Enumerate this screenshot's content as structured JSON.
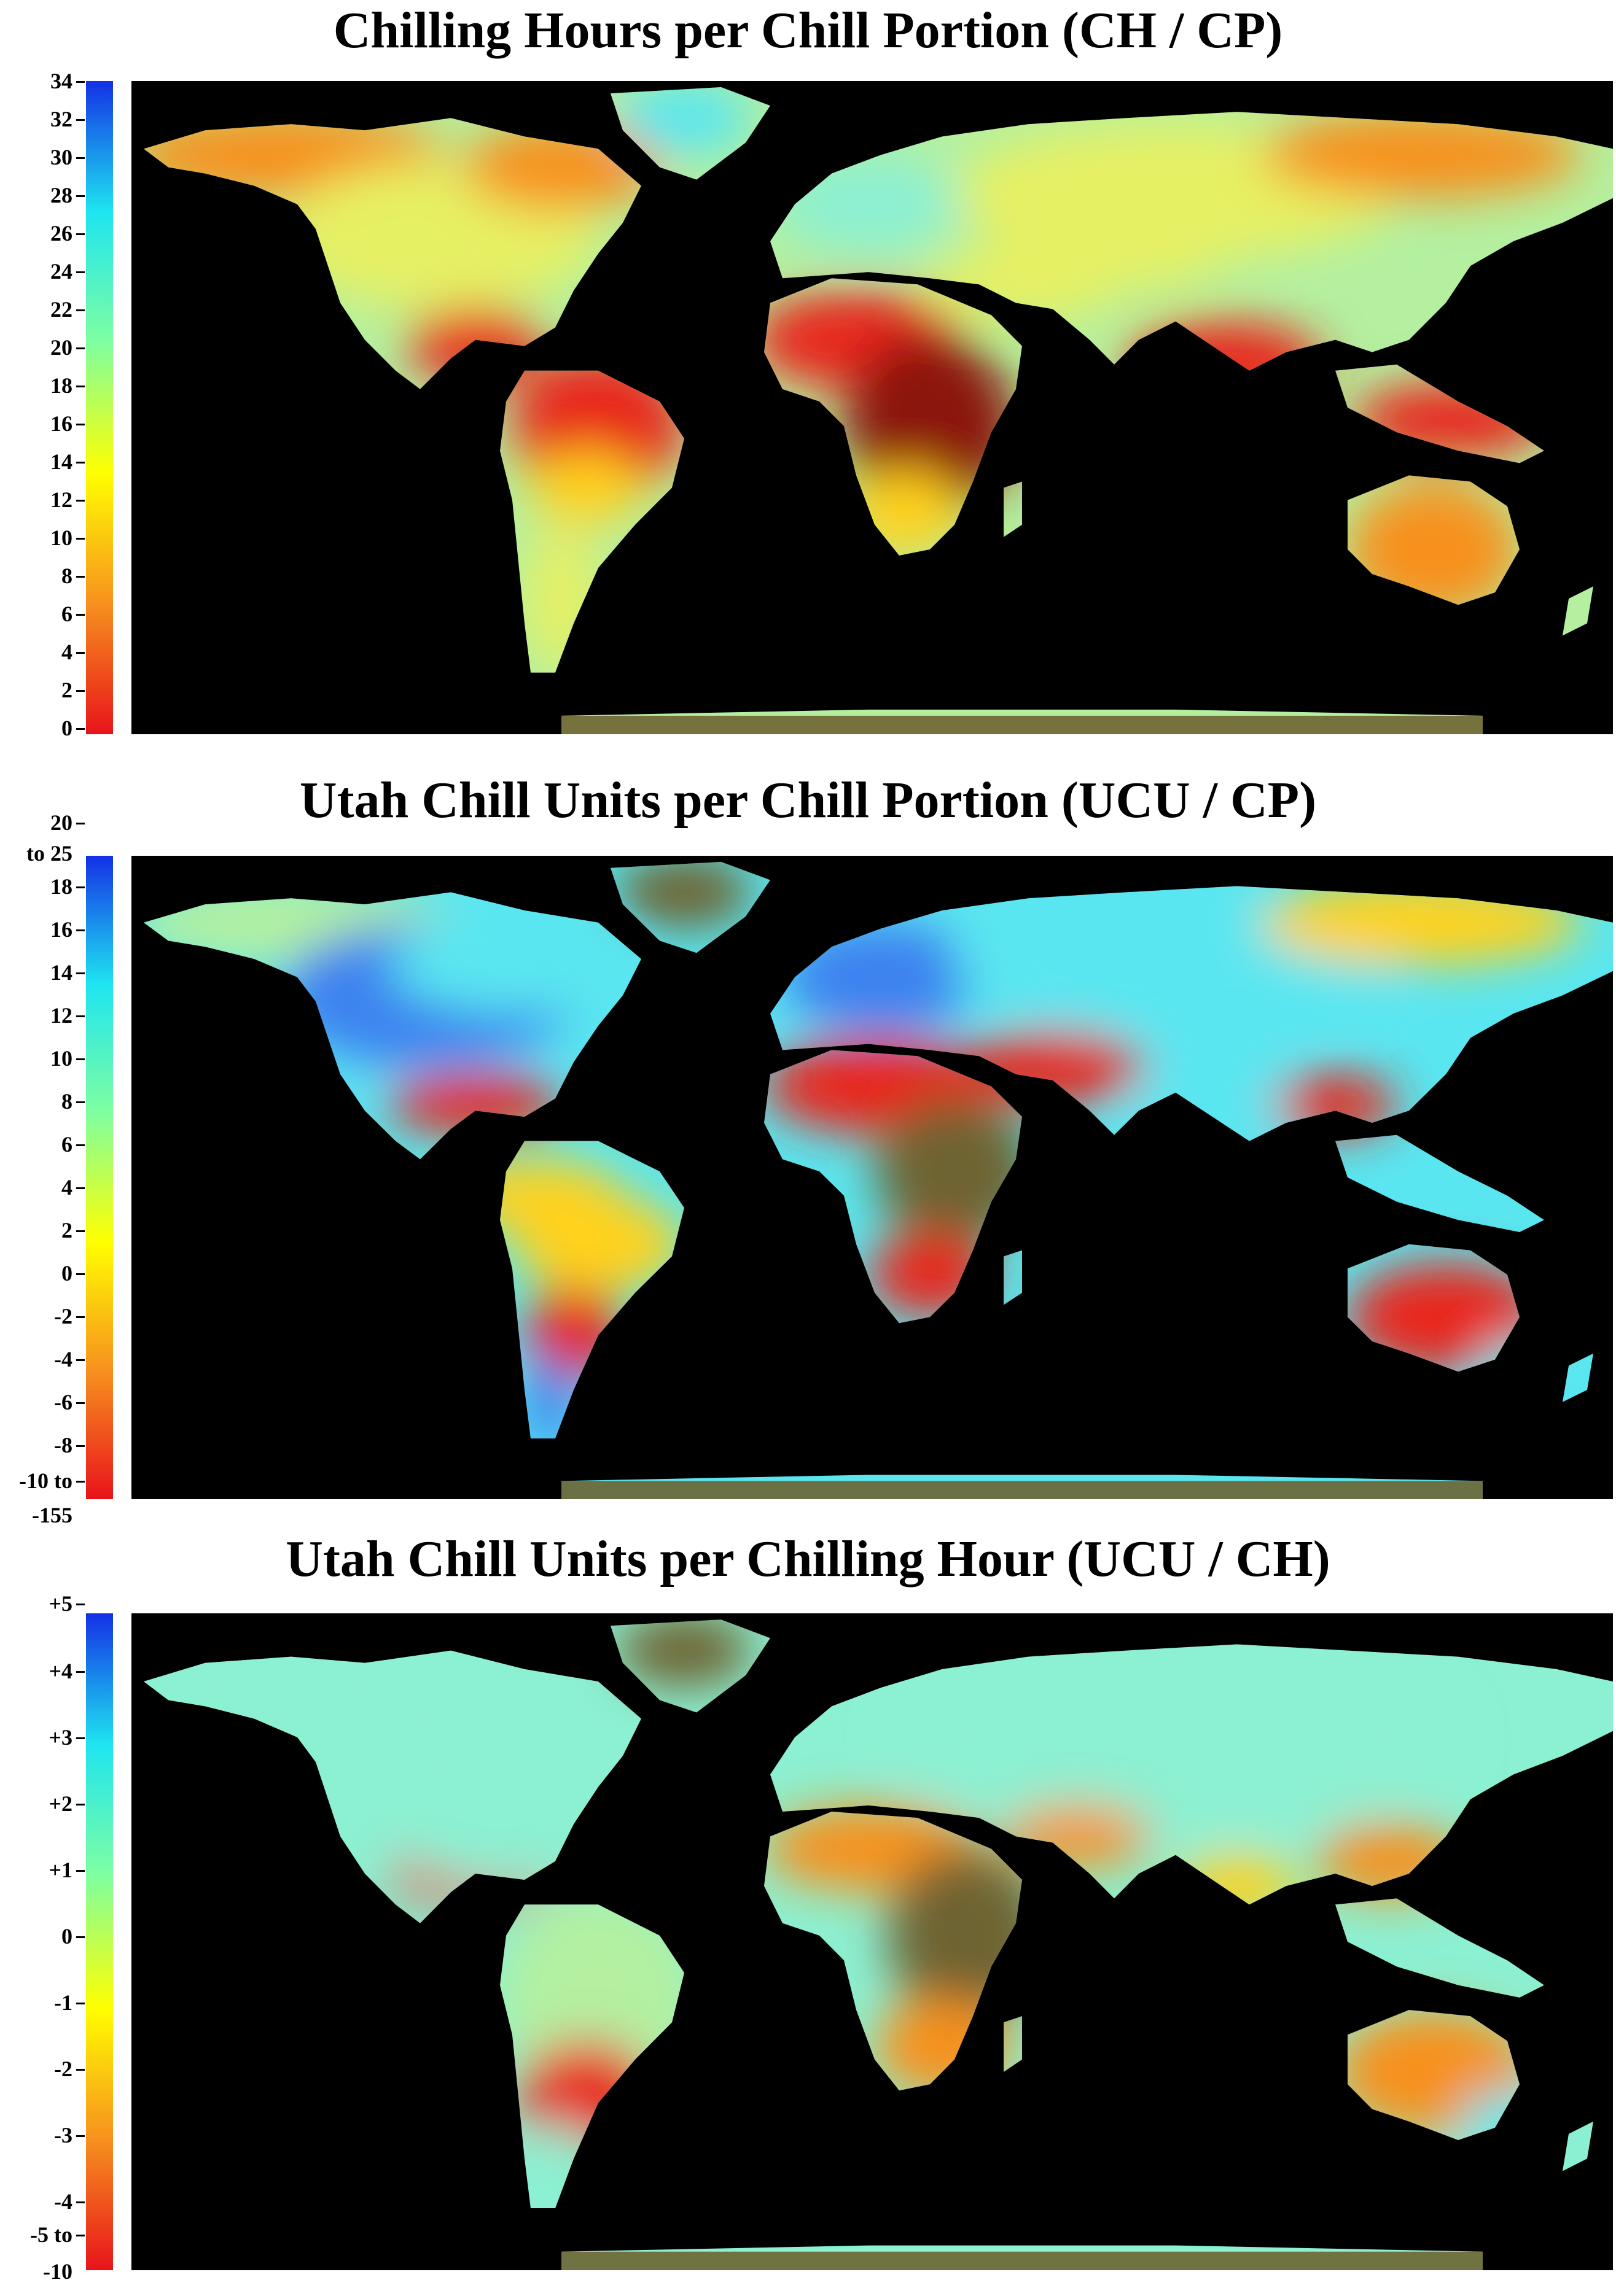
{
  "panels": [
    {
      "title": "Chilling Hours per Chill Portion (CH / CP)",
      "colorbar": {
        "gradient": [
          "#e8141b",
          "#f7911e",
          "#ffff00",
          "#7fffa0",
          "#1ee5f0",
          "#1430e6"
        ],
        "ticks": [
          "34",
          "32",
          "30",
          "28",
          "26",
          "24",
          "22",
          "20",
          "18",
          "16",
          "14",
          "12",
          "10",
          "8",
          "6",
          "4",
          "2",
          "0"
        ]
      }
    },
    {
      "title": "Utah Chill Units per Chill Portion (UCU / CP)",
      "colorbar": {
        "gradient": [
          "#e8141b",
          "#f7911e",
          "#ffff00",
          "#7fffa0",
          "#1ee5f0",
          "#1430e6"
        ],
        "ticks": [
          "20",
          "to 25",
          "18",
          "16",
          "14",
          "12",
          "10",
          "8",
          "6",
          "4",
          "2",
          "0",
          "-2",
          "-4",
          "-6",
          "-8",
          "-10 to",
          "-155"
        ]
      }
    },
    {
      "title": "Utah Chill Units per Chilling Hour (UCU / CH)",
      "colorbar": {
        "gradient": [
          "#e8141b",
          "#f7911e",
          "#ffff00",
          "#7fffa0",
          "#1ee5f0",
          "#1430e6"
        ],
        "ticks": [
          "+5",
          "+4",
          "+3",
          "+2",
          "+1",
          "0",
          "-1",
          "-2",
          "-3",
          "-4",
          "-5 to",
          "-10"
        ]
      }
    }
  ],
  "map_colors": {
    "ocean": "#000000",
    "red": "#e8281e",
    "dark_red": "#8b1410",
    "orange": "#f7911e",
    "yellow": "#ffd21e",
    "pale_yellow": "#e6f064",
    "light_green": "#b4f0a0",
    "aqua": "#8cf0d2",
    "cyan": "#5ae6f0",
    "blue": "#3c82f0",
    "olive": "#6e6432",
    "deep_blue": "#1e46e6"
  }
}
